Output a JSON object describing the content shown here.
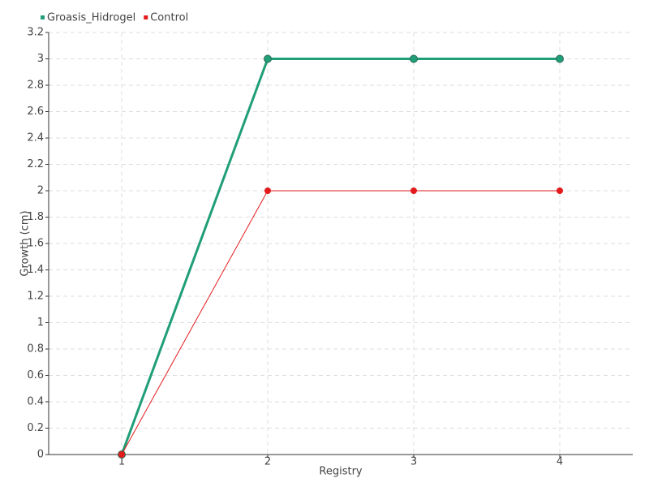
{
  "chart_data": {
    "type": "line",
    "x_label": "Registry",
    "y_label": "Growth (cm)",
    "categories": [
      "1",
      "2",
      "3",
      "4"
    ],
    "series": [
      {
        "name": "Groasis_Hidrogel",
        "color": "#1f9e77",
        "values": [
          0,
          3,
          3,
          3
        ]
      },
      {
        "name": "Control",
        "color": "#e31a1c",
        "values": [
          0,
          2,
          2,
          2
        ]
      }
    ],
    "ylim": [
      0,
      3.2
    ],
    "yticks": [
      0,
      0.2,
      0.4,
      0.6,
      0.8,
      1,
      1.2,
      1.4,
      1.6,
      1.8,
      2,
      2.2,
      2.4,
      2.6,
      2.8,
      3,
      3.2
    ],
    "grid": true,
    "legend": "top-left"
  }
}
